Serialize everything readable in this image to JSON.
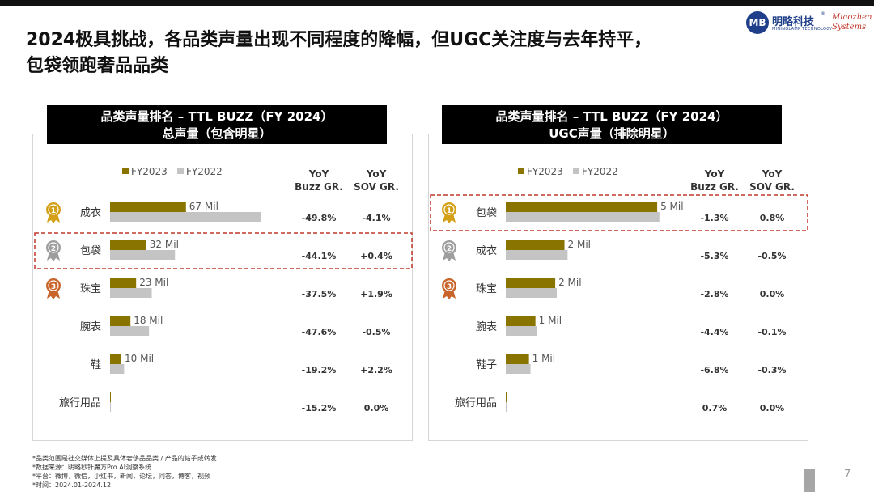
{
  "title": {
    "line1": "2024极具挑战，各品类声量出现不同程度的降幅，但UGC关注度与去年持平，",
    "line2": "包袋领跑奢品品类"
  },
  "logo": {
    "mark": "MB",
    "cn": "明略科技",
    "en": "MININGLAMP TECHNOLOGY",
    "reg": "®",
    "mz_line1": "Miaozhen",
    "mz_line2": "Systems",
    "brand_color": "#1f3f8a",
    "accent_color": "#c0392b"
  },
  "colors": {
    "fy2023": "#8a7400",
    "fy2022": "#c4c4c4",
    "highlight": "#c0392b",
    "gold": "#d4a017",
    "silver": "#9e9e9e",
    "bronze": "#c8652a"
  },
  "chart_data": [
    {
      "type": "bar",
      "title": "品类声量排名 – TTL BUZZ（FY 2024）",
      "subtitle": "总声量（包含明星）",
      "legend": [
        "FY2023",
        "FY2022"
      ],
      "legend_position": "top-left",
      "col_headers": [
        [
          "YoY",
          "Buzz GR."
        ],
        [
          "YoY",
          "SOV GR."
        ]
      ],
      "categories": [
        "成衣",
        "包袋",
        "珠宝",
        "腕表",
        "鞋",
        "旅行用品"
      ],
      "series": [
        {
          "name": "FY2023",
          "values": [
            67,
            32,
            23,
            18,
            10,
            0.12
          ]
        },
        {
          "name": "FY2022",
          "values": [
            133.5,
            57.3,
            36.8,
            34.4,
            12.4,
            0.14
          ]
        }
      ],
      "data_labels": [
        "67 Mil",
        "32 Mil",
        "23 Mil",
        "18 Mil",
        "10 Mil",
        ""
      ],
      "buzz_gr": [
        "-49.8%",
        "-44.1%",
        "-37.5%",
        "-47.6%",
        "-19.2%",
        "-15.2%"
      ],
      "sov_gr": [
        "-4.1%",
        "+0.4%",
        "+1.9%",
        "-0.5%",
        "+2.2%",
        "0.0%"
      ],
      "ranks": [
        "1",
        "2",
        "3",
        "",
        "",
        ""
      ],
      "highlight_index": 1,
      "xlim": [
        0,
        150
      ],
      "unit": "Mil"
    },
    {
      "type": "bar",
      "title": "品类声量排名 – TTL BUZZ（FY 2024）",
      "subtitle": "UGC声量（排除明星）",
      "legend": [
        "FY2023",
        "FY2022"
      ],
      "legend_position": "top-left",
      "col_headers": [
        [
          "YoY",
          "Buzz GR."
        ],
        [
          "YoY",
          "SOV GR."
        ]
      ],
      "categories": [
        "包袋",
        "成衣",
        "珠宝",
        "腕表",
        "鞋子",
        "旅行用品"
      ],
      "series": [
        {
          "name": "FY2023",
          "values": [
            4.9,
            1.9,
            1.6,
            0.96,
            0.75,
            0.03
          ]
        },
        {
          "name": "FY2022",
          "values": [
            4.97,
            2.0,
            1.65,
            1.0,
            0.8,
            0.03
          ]
        }
      ],
      "data_labels": [
        "5 Mil",
        "2 Mil",
        "2 Mil",
        "1 Mil",
        "1 Mil",
        ""
      ],
      "buzz_gr": [
        "-1.3%",
        "-5.3%",
        "-2.8%",
        "-4.4%",
        "-6.8%",
        "0.7%"
      ],
      "sov_gr": [
        "0.8%",
        "-0.5%",
        "0.0%",
        "-0.1%",
        "-0.3%",
        "0.0%"
      ],
      "ranks": [
        "1",
        "2",
        "3",
        "",
        "",
        ""
      ],
      "highlight_index": 0,
      "xlim": [
        0,
        5.5
      ],
      "unit": "Mil"
    }
  ],
  "footnotes": [
    "*品类范围是社交媒体上提及具体奢侈品品类 / 产品的帖子或转发",
    "*数据来源：明略秒针魔方Pro AI洞察系统",
    "*平台：微博，微信，小红书，新闻，论坛，问答，博客，视频",
    "*时间：2024.01-2024.12"
  ],
  "page_number": "7"
}
